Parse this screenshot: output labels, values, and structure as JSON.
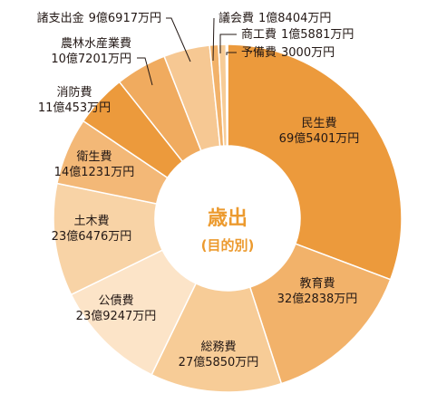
{
  "chart_data": {
    "type": "pie",
    "unit": "万円",
    "center": {
      "title": "歳出",
      "subtitle": "(目的別)"
    },
    "slices": [
      {
        "name": "民生費",
        "value_text": "69億5401万円",
        "value": 695401,
        "color": "#ec9a3c"
      },
      {
        "name": "教育費",
        "value_text": "32億2838万円",
        "value": 322838,
        "color": "#f2b26a"
      },
      {
        "name": "総務費",
        "value_text": "27億5850万円",
        "value": 275850,
        "color": "#f7cc97"
      },
      {
        "name": "公債費",
        "value_text": "23億9247万円",
        "value": 239247,
        "color": "#fce4c8"
      },
      {
        "name": "土木費",
        "value_text": "23億6476万円",
        "value": 236476,
        "color": "#f8d3a6"
      },
      {
        "name": "衛生費",
        "value_text": "14億1231万円",
        "value": 141231,
        "color": "#f3b877"
      },
      {
        "name": "消防費",
        "value_text": "11億453万円",
        "value": 110453,
        "color": "#ec9a3c"
      },
      {
        "name": "農林水産業費",
        "value_text": "10億7201万円",
        "value": 107201,
        "color": "#f0ab5f"
      },
      {
        "name": "諸支出金",
        "value_text": "9億6917万円",
        "value": 96917,
        "color": "#f6c893"
      },
      {
        "name": "議会費",
        "value_text": "1億8404万円",
        "value": 18404,
        "color": "#f2b26a"
      },
      {
        "name": "商工費",
        "value_text": "1億5881万円",
        "value": 15881,
        "color": "#f7cc97"
      },
      {
        "name": "予備費",
        "value_text": "3000万円",
        "value": 3000,
        "color": "#fce4c8"
      }
    ]
  }
}
